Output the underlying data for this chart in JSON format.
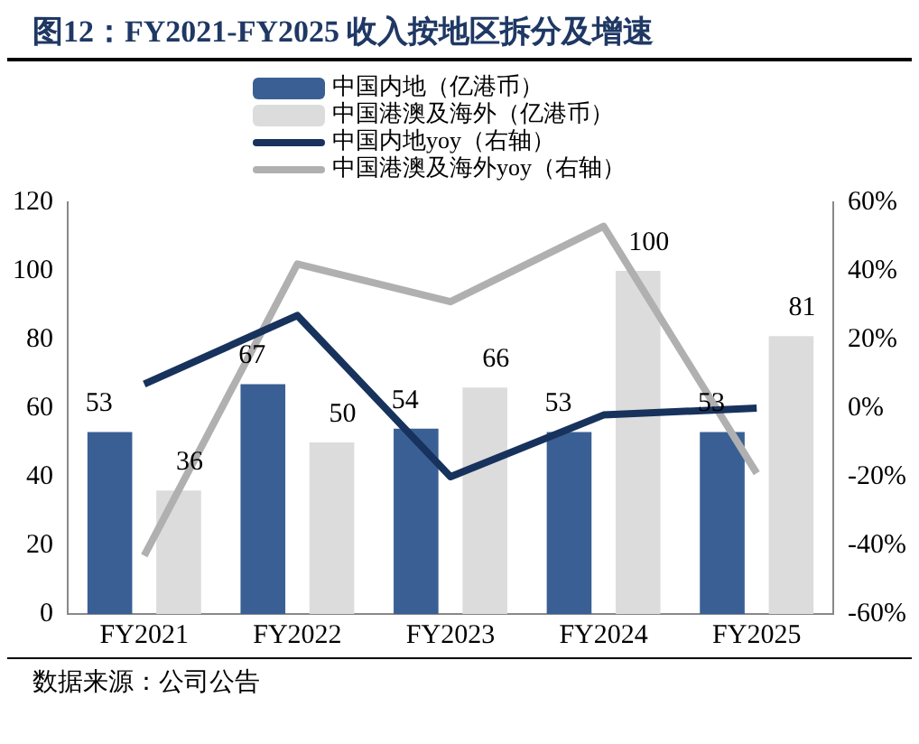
{
  "chart_data": {
    "type": "bar",
    "title": "图12：FY2021-FY2025 收入按地区拆分及增速",
    "categories": [
      "FY2021",
      "FY2022",
      "FY2023",
      "FY2024",
      "FY2025"
    ],
    "series": [
      {
        "name": "中国内地（亿港币）",
        "color": "#3a5f94",
        "values": [
          53,
          67,
          54,
          53,
          53
        ],
        "value_labels": [
          "53",
          "67",
          "54",
          "53",
          "53"
        ]
      },
      {
        "name": "中国港澳及海外（亿港币）",
        "color": "#dcdcdc",
        "values": [
          36,
          50,
          66,
          100,
          81
        ],
        "value_labels": [
          "36",
          "50",
          "66",
          "100",
          "81"
        ]
      },
      {
        "name": "中国内地yoy（右轴）",
        "type": "line",
        "axis": "y2",
        "color": "#17325c",
        "values": [
          7,
          27,
          -20,
          -2,
          0
        ]
      },
      {
        "name": "中国港澳及海外yoy（右轴）",
        "type": "line",
        "axis": "y2",
        "color": "#b0b0b0",
        "values": [
          -43,
          42,
          31,
          53,
          -19
        ]
      }
    ],
    "ylim": [
      0,
      120
    ],
    "yticks": [
      0,
      20,
      40,
      60,
      80,
      100,
      120
    ],
    "y2lim": [
      -60,
      60
    ],
    "y2ticks": [
      {
        "value": -60,
        "label": "-60%"
      },
      {
        "value": -40,
        "label": "-40%"
      },
      {
        "value": -20,
        "label": "-20%"
      },
      {
        "value": 0,
        "label": "0%"
      },
      {
        "value": 20,
        "label": "20%"
      },
      {
        "value": 40,
        "label": "40%"
      },
      {
        "value": 60,
        "label": "60%"
      }
    ],
    "grid": false,
    "legend": "top",
    "marker": "none",
    "annotations": [
      "数据来源：公司公告"
    ]
  }
}
